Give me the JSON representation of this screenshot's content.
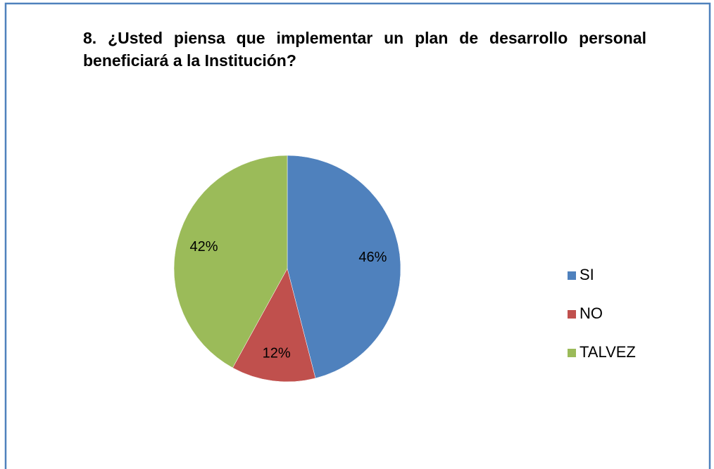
{
  "chart_data": {
    "type": "pie",
    "title": "8. ¿Usted piensa que implementar un plan de desarrollo personal beneficiará a la Institución?",
    "categories": [
      "SI",
      "NO",
      "TALVEZ"
    ],
    "values": [
      46,
      12,
      42
    ],
    "value_labels": [
      "46%",
      "12%",
      "42%"
    ],
    "colors": [
      "#4f81bd",
      "#c0504d",
      "#9bbb59"
    ],
    "legend": "right"
  }
}
